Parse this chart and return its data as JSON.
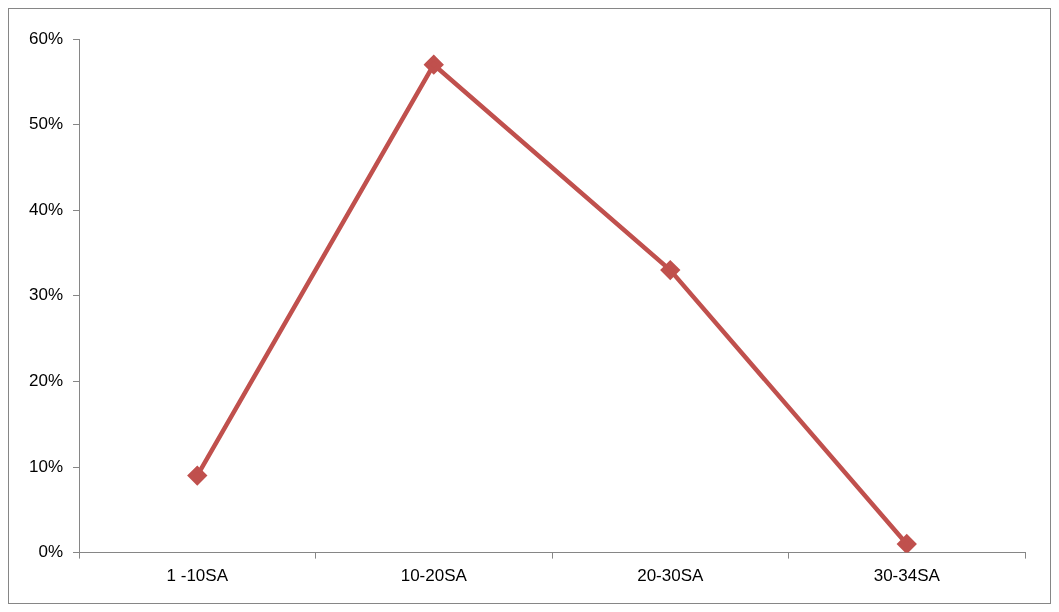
{
  "chart_data": {
    "type": "line",
    "categories": [
      "1 -10SA",
      "10-20SA",
      "20-30SA",
      "30-34SA"
    ],
    "series": [
      {
        "color": "#c0504d",
        "values": [
          9,
          57,
          33,
          1
        ]
      }
    ],
    "ylim": [
      0,
      60
    ],
    "yticks": [
      {
        "value": 0,
        "label": "0%"
      },
      {
        "value": 10,
        "label": "10%"
      },
      {
        "value": 20,
        "label": "20%"
      },
      {
        "value": 30,
        "label": "30%"
      },
      {
        "value": 40,
        "label": "40%"
      },
      {
        "value": 50,
        "label": "50%"
      },
      {
        "value": 60,
        "label": "60%"
      }
    ],
    "grid": false,
    "legend": false,
    "marker": "diamond",
    "line_style": "solid"
  }
}
